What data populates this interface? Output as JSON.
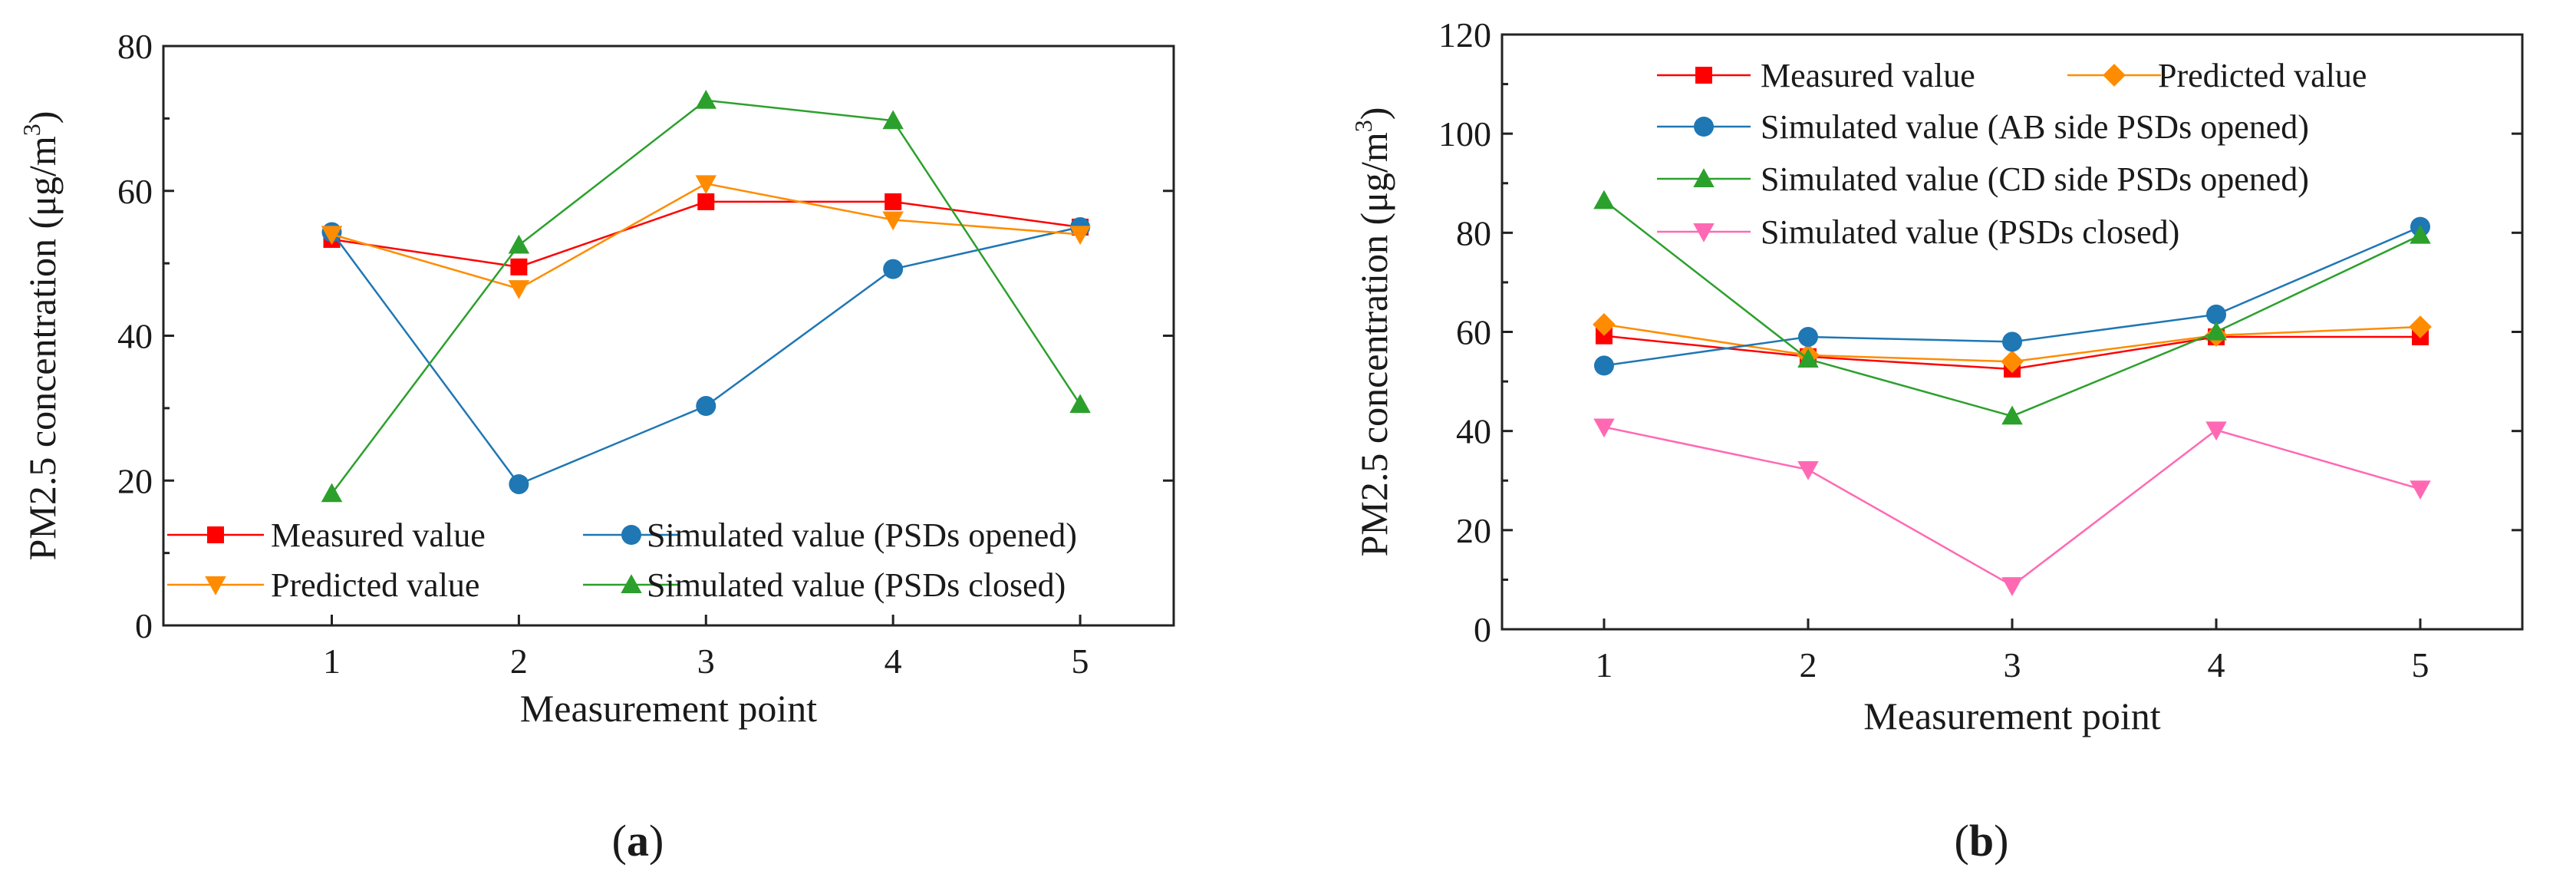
{
  "chart_data": [
    {
      "type": "line",
      "panel": "(a)",
      "caption_letter": "a",
      "xlabel": "Measurement point",
      "ylabel_prefix": "PM2.5 concentration (μg/m",
      "ylabel_superscript": "3",
      "ylabel_suffix": ")",
      "x": [
        1,
        2,
        3,
        4,
        5
      ],
      "xticks": [
        "1",
        "2",
        "3",
        "4",
        "5"
      ],
      "xlim": [
        0.1,
        5.5
      ],
      "ylim": [
        0,
        80
      ],
      "yticks": [
        "0",
        "20",
        "40",
        "60",
        "80"
      ],
      "grid": false,
      "legend": "bottom",
      "series": [
        {
          "name": "Measured value",
          "color": "#ff0000",
          "marker": "square",
          "values": [
            53.3,
            49.5,
            58.5,
            58.5,
            55.0
          ]
        },
        {
          "name": "Simulated value (PSDs opened)",
          "color": "#1f77b4",
          "marker": "circle",
          "values": [
            54.3,
            19.5,
            30.3,
            49.2,
            55.0
          ]
        },
        {
          "name": "Predicted value",
          "color": "#ff8c00",
          "marker": "triangle-down",
          "values": [
            54.0,
            46.5,
            61.0,
            56.0,
            54.0
          ]
        },
        {
          "name": "Simulated value (PSDs closed)",
          "color": "#2ca02c",
          "marker": "triangle-up",
          "values": [
            18.2,
            52.5,
            72.5,
            69.7,
            30.5
          ]
        }
      ]
    },
    {
      "type": "line",
      "panel": "(b)",
      "caption_letter": "b",
      "xlabel": "Measurement point",
      "ylabel_prefix": "PM2.5 concentration (μg/m",
      "ylabel_superscript": "3",
      "ylabel_suffix": ")",
      "x": [
        1,
        2,
        3,
        4,
        5
      ],
      "xticks": [
        "1",
        "2",
        "3",
        "4",
        "5"
      ],
      "xlim": [
        0.5,
        5.5
      ],
      "ylim": [
        0,
        120
      ],
      "yticks": [
        "0",
        "20",
        "40",
        "60",
        "80",
        "100",
        "120"
      ],
      "grid": false,
      "legend": "top-left",
      "series": [
        {
          "name": "Measured value",
          "color": "#ff0000",
          "marker": "square",
          "values": [
            59.2,
            55.0,
            52.5,
            59.0,
            59.0
          ]
        },
        {
          "name": "Predicted value",
          "color": "#ff8c00",
          "marker": "diamond",
          "values": [
            61.5,
            55.3,
            54.0,
            59.3,
            61.0
          ]
        },
        {
          "name": "Simulated value (AB side PSDs opened)",
          "color": "#1f77b4",
          "marker": "circle",
          "values": [
            53.2,
            59.0,
            58.0,
            63.5,
            81.2
          ]
        },
        {
          "name": "Simulated value (CD side PSDs opened)",
          "color": "#2ca02c",
          "marker": "triangle-up",
          "values": [
            86.5,
            54.5,
            43.0,
            60.0,
            79.5
          ]
        },
        {
          "name": "Simulated value (PSDs closed)",
          "color": "#ff69b4",
          "marker": "triangle-down",
          "values": [
            40.8,
            32.2,
            8.8,
            40.2,
            28.3
          ]
        }
      ]
    }
  ]
}
